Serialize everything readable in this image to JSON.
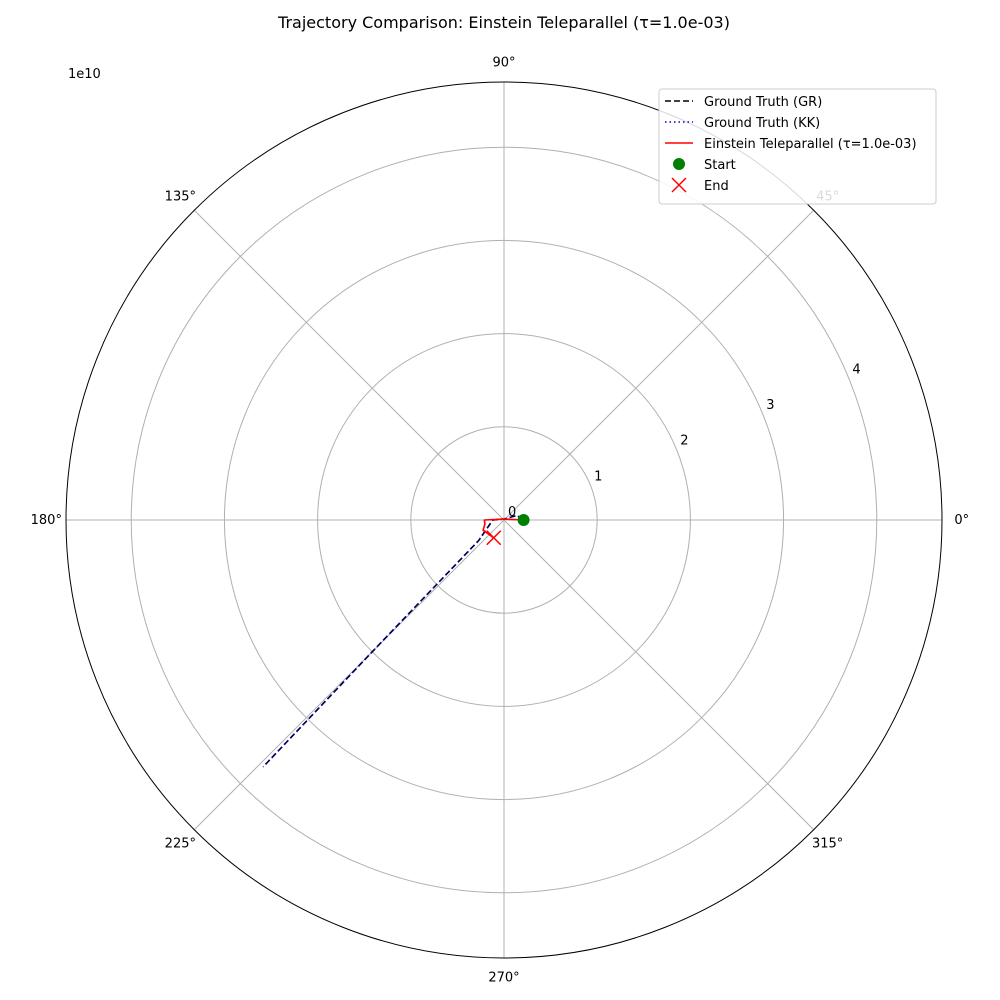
{
  "chart_data": {
    "type": "line",
    "projection": "polar",
    "title": "Trajectory Comparison: Einstein Teleparallel (τ=1.0e-03)",
    "radial_scale_label": "1e10",
    "radial_scale_factor": 10000000000.0,
    "rlim": [
      0,
      4.7
    ],
    "radial_ticks": [
      0,
      1,
      2,
      3,
      4
    ],
    "radial_tick_labels": [
      "0",
      "1",
      "2",
      "3",
      "4"
    ],
    "angle_ticks_deg": [
      0,
      45,
      90,
      135,
      180,
      225,
      270,
      315
    ],
    "angle_tick_labels": [
      "0°",
      "45°",
      "90°",
      "135°",
      "180°",
      "225°",
      "270°",
      "315°"
    ],
    "grid": true,
    "legend_position": "top-right",
    "series": [
      {
        "name": "Ground Truth (GR)",
        "color": "#000000",
        "style": "dashed",
        "theta_deg": [
          0,
          19,
          90,
          180,
          219,
          225,
          225.7
        ],
        "r": [
          0.2,
          0.15,
          0.01,
          0.12,
          0.35,
          2.0,
          3.7
        ]
      },
      {
        "name": "Ground Truth (KK)",
        "color": "#0000cc",
        "style": "dotted",
        "theta_deg": [
          0,
          19,
          90,
          180,
          219,
          225,
          225.7
        ],
        "r": [
          0.2,
          0.15,
          0.01,
          0.12,
          0.35,
          2.0,
          3.7
        ]
      },
      {
        "name": "Einstein Teleparallel (τ=1.0e-03)",
        "color": "#ff0000",
        "style": "solid",
        "theta_deg": [
          0,
          90,
          180,
          192,
          206,
          240
        ],
        "r": [
          0.22,
          0.01,
          0.21,
          0.21,
          0.25,
          0.22
        ]
      }
    ],
    "markers": [
      {
        "name": "Start",
        "symbol": "circle",
        "color": "#008000",
        "theta_deg": 0,
        "r": 0.21
      },
      {
        "name": "End",
        "symbol": "x",
        "color": "#ff0000",
        "theta_deg": 240,
        "r": 0.22
      }
    ]
  }
}
